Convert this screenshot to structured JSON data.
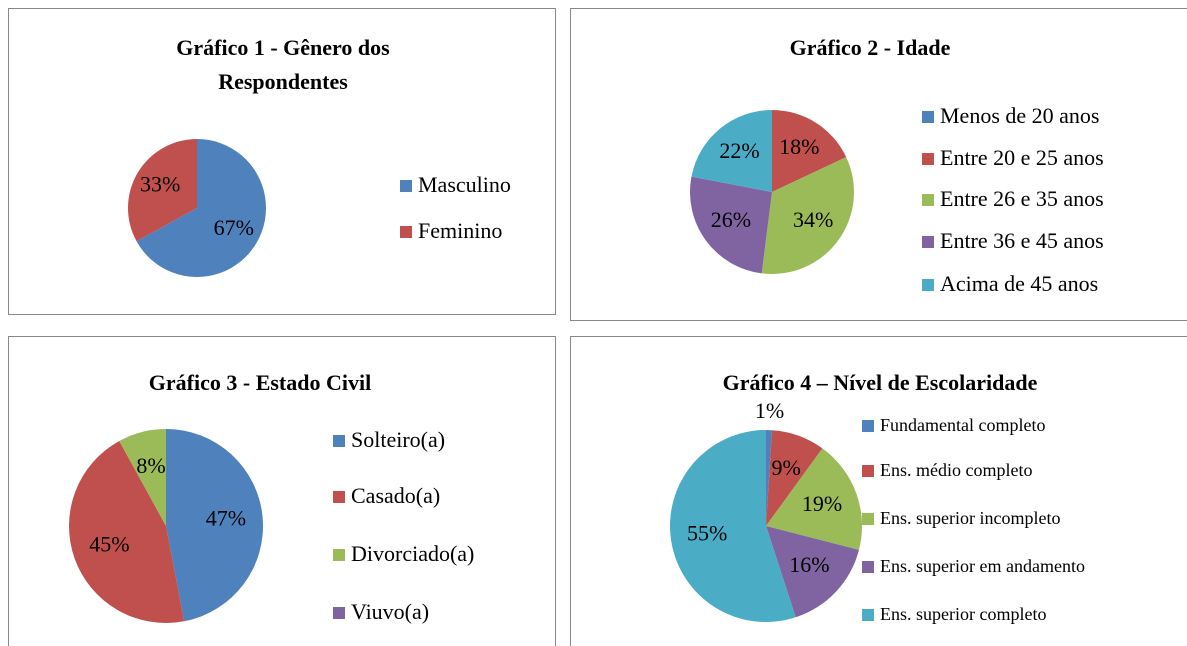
{
  "chart_data": [
    {
      "type": "pie",
      "title": "Gráfico 1 - Gênero dos Respondentes",
      "categories": [
        "Masculino",
        "Feminino"
      ],
      "values": [
        67,
        33
      ],
      "value_labels": [
        "67%",
        "33%"
      ],
      "colors": [
        "#4f81bd",
        "#c0504d"
      ]
    },
    {
      "type": "pie",
      "title": "Gráfico 2 - Idade",
      "categories": [
        "Menos de 20 anos",
        "Entre 20 e 25 anos",
        "Entre 26 e 35 anos",
        "Entre 36 e 45 anos",
        "Acima de 45 anos"
      ],
      "values": [
        0,
        18,
        34,
        26,
        22
      ],
      "value_labels": [
        null,
        "18%",
        "34%",
        "26%",
        "22%"
      ],
      "colors": [
        "#4f81bd",
        "#c0504d",
        "#9bbb59",
        "#8064a2",
        "#4bacc6"
      ]
    },
    {
      "type": "pie",
      "title": "Gráfico 3 - Estado Civil",
      "categories": [
        "Solteiro(a)",
        "Casado(a)",
        "Divorciado(a)",
        "Viuvo(a)"
      ],
      "values": [
        47,
        45,
        8,
        0
      ],
      "value_labels": [
        "47%",
        "45%",
        "8%",
        null
      ],
      "colors": [
        "#4f81bd",
        "#c0504d",
        "#9bbb59",
        "#8064a2"
      ]
    },
    {
      "type": "pie",
      "title": "Gráfico 4 – Nível de Escolaridade",
      "categories": [
        "Fundamental completo",
        "Ens. médio completo",
        "Ens. superior incompleto",
        "Ens. superior em andamento",
        "Ens. superior completo"
      ],
      "values": [
        1,
        9,
        19,
        16,
        55
      ],
      "value_labels": [
        "1%",
        "9%",
        "19%",
        "16%",
        "55%"
      ],
      "colors": [
        "#4f81bd",
        "#c0504d",
        "#9bbb59",
        "#8064a2",
        "#4bacc6"
      ]
    }
  ]
}
